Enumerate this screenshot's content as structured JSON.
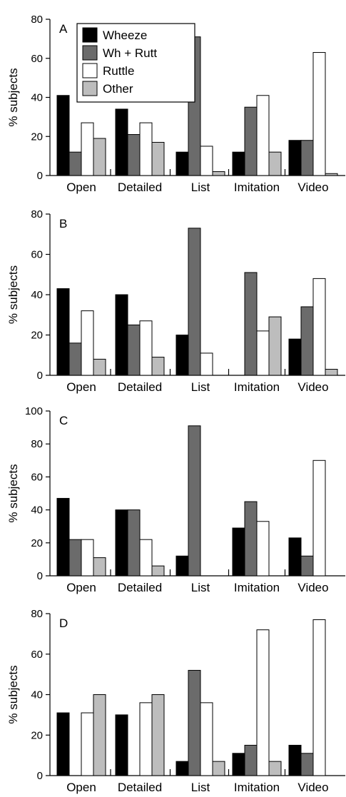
{
  "colors": {
    "wheeze": "#000000",
    "wh_rutt": "#6b6b6b",
    "ruttle": "#ffffff",
    "other": "#bdbdbd",
    "stroke": "#000000"
  },
  "legend": [
    {
      "label": "Wheeze",
      "color_key": "wheeze"
    },
    {
      "label": "Wh + Rutt",
      "color_key": "wh_rutt"
    },
    {
      "label": "Ruttle",
      "color_key": "ruttle"
    },
    {
      "label": "Other",
      "color_key": "other"
    }
  ],
  "chart_data": [
    {
      "type": "bar",
      "panel_label": "A",
      "ylabel": "% subjects",
      "ylim": [
        0,
        80
      ],
      "yticks": [
        0,
        20,
        40,
        60,
        80
      ],
      "categories": [
        "Open",
        "Detailed",
        "List",
        "Imitation",
        "Video"
      ],
      "legend_position": "top-left",
      "series": [
        {
          "name": "Wheeze",
          "values": [
            41,
            34,
            12,
            12,
            18
          ]
        },
        {
          "name": "Wh + Rutt",
          "values": [
            12,
            21,
            71,
            35,
            18
          ]
        },
        {
          "name": "Ruttle",
          "values": [
            27,
            27,
            15,
            41,
            63
          ]
        },
        {
          "name": "Other",
          "values": [
            19,
            17,
            2,
            12,
            1
          ]
        }
      ]
    },
    {
      "type": "bar",
      "panel_label": "B",
      "ylabel": "% subjects",
      "ylim": [
        0,
        80
      ],
      "yticks": [
        0,
        20,
        40,
        60,
        80
      ],
      "categories": [
        "Open",
        "Detailed",
        "List",
        "Imitation",
        "Video"
      ],
      "series": [
        {
          "name": "Wheeze",
          "values": [
            43,
            40,
            20,
            0,
            18
          ]
        },
        {
          "name": "Wh + Rutt",
          "values": [
            16,
            25,
            73,
            51,
            34
          ]
        },
        {
          "name": "Ruttle",
          "values": [
            32,
            27,
            11,
            22,
            48
          ]
        },
        {
          "name": "Other",
          "values": [
            8,
            9,
            0,
            29,
            3
          ]
        }
      ]
    },
    {
      "type": "bar",
      "panel_label": "C",
      "ylabel": "% subjects",
      "ylim": [
        0,
        100
      ],
      "yticks": [
        0,
        20,
        40,
        60,
        80,
        100
      ],
      "categories": [
        "Open",
        "Detailed",
        "List",
        "Imitation",
        "Video"
      ],
      "series": [
        {
          "name": "Wheeze",
          "values": [
            47,
            40,
            12,
            29,
            23
          ]
        },
        {
          "name": "Wh + Rutt",
          "values": [
            22,
            40,
            91,
            45,
            12
          ]
        },
        {
          "name": "Ruttle",
          "values": [
            22,
            22,
            0,
            33,
            70
          ]
        },
        {
          "name": "Other",
          "values": [
            11,
            6,
            0,
            0,
            0
          ]
        }
      ]
    },
    {
      "type": "bar",
      "panel_label": "D",
      "ylabel": "% subjects",
      "ylim": [
        0,
        80
      ],
      "yticks": [
        0,
        20,
        40,
        60,
        80
      ],
      "categories": [
        "Open",
        "Detailed",
        "List",
        "Imitation",
        "Video"
      ],
      "series": [
        {
          "name": "Wheeze",
          "values": [
            31,
            30,
            7,
            11,
            15
          ]
        },
        {
          "name": "Wh + Rutt",
          "values": [
            0,
            0,
            52,
            15,
            11
          ]
        },
        {
          "name": "Ruttle",
          "values": [
            31,
            36,
            36,
            72,
            77
          ]
        },
        {
          "name": "Other",
          "values": [
            40,
            40,
            7,
            7,
            0
          ]
        }
      ]
    }
  ]
}
